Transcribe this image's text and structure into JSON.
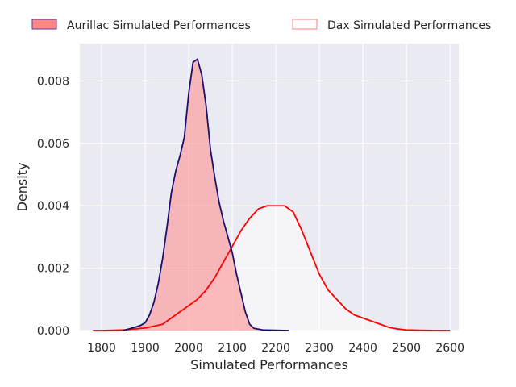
{
  "chart_data": {
    "type": "area",
    "title": "",
    "xlabel": "Simulated Performances",
    "ylabel": "Density",
    "xlim": [
      1750,
      2620
    ],
    "ylim": [
      0,
      0.0092
    ],
    "grid": true,
    "legend_position": "top",
    "x_ticks": [
      1800,
      1900,
      2000,
      2100,
      2200,
      2300,
      2400,
      2500,
      2600
    ],
    "x_tick_labels": [
      "1800",
      "1900",
      "2000",
      "2100",
      "2200",
      "2300",
      "2400",
      "2500",
      "2600"
    ],
    "y_ticks": [
      0,
      0.002,
      0.004,
      0.006,
      0.008
    ],
    "y_tick_labels": [
      "0.000",
      "0.002",
      "0.004",
      "0.006",
      "0.008"
    ],
    "series": [
      {
        "name": "Aurillac Simulated Performances",
        "fill": "#ff7f7f",
        "line": "#1a1070",
        "fill_opacity": 0.5,
        "legend_fill": "#ff7f7f",
        "legend_edge": "#5a3aa0",
        "x": [
          1850,
          1870,
          1880,
          1890,
          1900,
          1910,
          1920,
          1930,
          1940,
          1950,
          1960,
          1970,
          1980,
          1990,
          2000,
          2010,
          2020,
          2030,
          2040,
          2050,
          2060,
          2070,
          2080,
          2090,
          2100,
          2110,
          2120,
          2130,
          2140,
          2150,
          2170,
          2200,
          2230
        ],
        "values": [
          0,
          8e-05,
          0.00012,
          0.00017,
          0.00025,
          0.0005,
          0.0009,
          0.0015,
          0.0023,
          0.0033,
          0.0044,
          0.0051,
          0.0056,
          0.0062,
          0.0076,
          0.0086,
          0.0087,
          0.0082,
          0.0072,
          0.0058,
          0.0049,
          0.0041,
          0.0035,
          0.003,
          0.0025,
          0.0018,
          0.0012,
          0.0006,
          0.0002,
          7e-05,
          2e-05,
          1e-05,
          0
        ]
      },
      {
        "name": "Dax Simulated Performances",
        "fill": "#ffffff",
        "line": "#ff0000",
        "fill_opacity": 0.5,
        "legend_fill": "#ffffff",
        "legend_edge": "#ff7f7f",
        "x": [
          1780,
          1800,
          1850,
          1900,
          1940,
          1960,
          1980,
          2000,
          2020,
          2040,
          2060,
          2080,
          2100,
          2120,
          2140,
          2160,
          2180,
          2200,
          2220,
          2240,
          2260,
          2280,
          2300,
          2320,
          2340,
          2360,
          2380,
          2400,
          2420,
          2440,
          2460,
          2480,
          2500,
          2530,
          2560,
          2600
        ],
        "values": [
          0,
          0,
          2e-05,
          8e-05,
          0.0002,
          0.0004,
          0.0006,
          0.0008,
          0.001,
          0.0013,
          0.0017,
          0.0022,
          0.0027,
          0.0032,
          0.0036,
          0.0039,
          0.004,
          0.004,
          0.004,
          0.0038,
          0.0032,
          0.0025,
          0.0018,
          0.0013,
          0.001,
          0.0007,
          0.0005,
          0.0004,
          0.0003,
          0.0002,
          0.0001,
          5e-05,
          2e-05,
          1e-05,
          3e-06,
          0
        ]
      }
    ]
  }
}
